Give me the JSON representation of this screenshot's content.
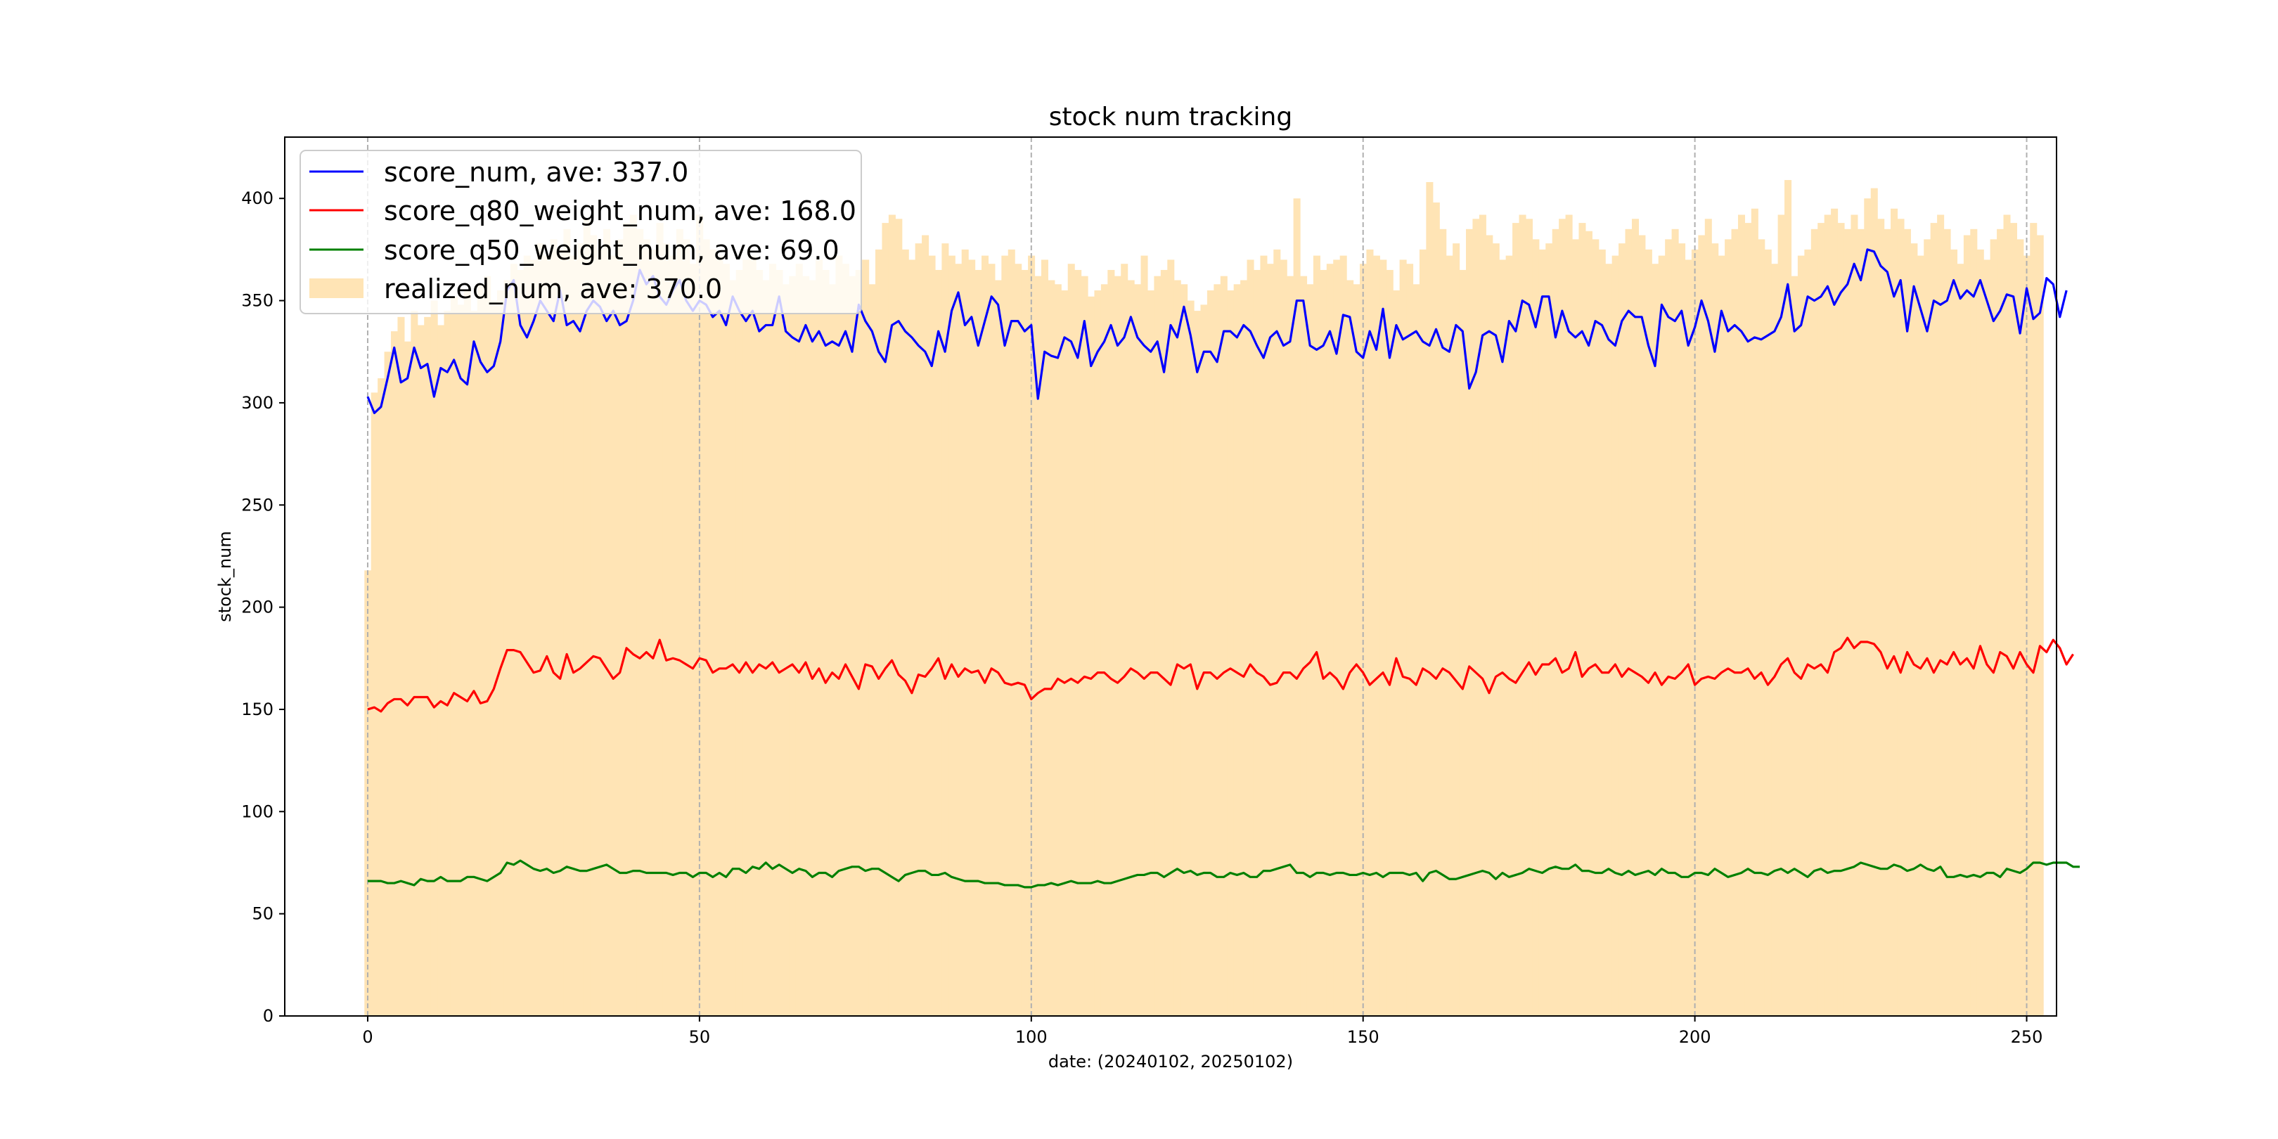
{
  "chart_data": {
    "type": "line+bar",
    "title": "stock num tracking",
    "xlabel": "date: (20240102, 20250102)",
    "ylabel": "stock_num",
    "xlim": [
      -12.5,
      254.5
    ],
    "ylim": [
      0,
      430
    ],
    "xticks": [
      0,
      50,
      100,
      150,
      200,
      250
    ],
    "yticks": [
      0,
      50,
      100,
      150,
      200,
      250,
      300,
      350,
      400
    ],
    "vertical_grid": true,
    "legend_position": "top-left",
    "series": [
      {
        "name": "score_num",
        "legend_label": "score_num, ave: 337.0",
        "kind": "line",
        "color": "#0000ff",
        "values": [
          303,
          295,
          298,
          312,
          327,
          310,
          312,
          327,
          317,
          319,
          303,
          317,
          315,
          321,
          312,
          309,
          330,
          320,
          315,
          318,
          330,
          355,
          360,
          338,
          332,
          340,
          350,
          345,
          340,
          355,
          338,
          340,
          335,
          345,
          350,
          347,
          340,
          345,
          338,
          340,
          350,
          365,
          358,
          362,
          352,
          348,
          355,
          360,
          350,
          345,
          350,
          348,
          342,
          345,
          338,
          352,
          345,
          340,
          345,
          335,
          338,
          338,
          352,
          335,
          332,
          330,
          338,
          330,
          335,
          328,
          330,
          328,
          335,
          325,
          348,
          340,
          335,
          325,
          320,
          338,
          340,
          335,
          332,
          328,
          325,
          318,
          335,
          325,
          345,
          354,
          338,
          342,
          328,
          340,
          352,
          348,
          328,
          340,
          340,
          335,
          338,
          302,
          325,
          323,
          322,
          332,
          330,
          322,
          340,
          318,
          325,
          330,
          338,
          328,
          332,
          342,
          332,
          328,
          325,
          330,
          315,
          338,
          332,
          347,
          333,
          315,
          325,
          325,
          320,
          335,
          335,
          332,
          338,
          335,
          328,
          322,
          332,
          335,
          328,
          330,
          350,
          350,
          328,
          326,
          328,
          335,
          324,
          343,
          342,
          325,
          322,
          335,
          326,
          346,
          322,
          338,
          331,
          333,
          335,
          330,
          328,
          336,
          327,
          325,
          338,
          335,
          307,
          315,
          333,
          335,
          333,
          320,
          340,
          335,
          350,
          348,
          337,
          352,
          352,
          332,
          345,
          335,
          332,
          335,
          328,
          340,
          338,
          331,
          328,
          340,
          345,
          342,
          342,
          328,
          318,
          348,
          342,
          340,
          345,
          328,
          337,
          350,
          340,
          325,
          345,
          335,
          338,
          335,
          330,
          332,
          331,
          333,
          335,
          342,
          358,
          335,
          338,
          352,
          350,
          352,
          357,
          348,
          354,
          358,
          368,
          360,
          375,
          374,
          367,
          364,
          352,
          360,
          335,
          357,
          346,
          335,
          350,
          348,
          350,
          360,
          351,
          355,
          352,
          360,
          350,
          340,
          345,
          353,
          352,
          334,
          356,
          341,
          344,
          361,
          358,
          342,
          355
        ]
      },
      {
        "name": "score_q80_weight_num",
        "legend_label": "score_q80_weight_num, ave: 168.0",
        "kind": "line",
        "color": "#ff0000",
        "values": [
          150,
          151,
          149,
          153,
          155,
          155,
          152,
          156,
          156,
          156,
          151,
          154,
          152,
          158,
          156,
          154,
          159,
          153,
          154,
          160,
          170,
          179,
          179,
          178,
          173,
          168,
          169,
          176,
          168,
          165,
          177,
          168,
          170,
          173,
          176,
          175,
          170,
          165,
          168,
          180,
          177,
          175,
          178,
          175,
          184,
          174,
          175,
          174,
          172,
          170,
          175,
          174,
          168,
          170,
          170,
          172,
          168,
          173,
          168,
          172,
          170,
          173,
          168,
          170,
          172,
          168,
          173,
          165,
          170,
          163,
          168,
          165,
          172,
          166,
          160,
          172,
          171,
          165,
          170,
          174,
          167,
          164,
          158,
          167,
          166,
          170,
          175,
          165,
          172,
          166,
          170,
          168,
          169,
          163,
          170,
          168,
          163,
          162,
          163,
          162,
          155,
          158,
          160,
          160,
          165,
          163,
          165,
          163,
          166,
          165,
          168,
          168,
          165,
          163,
          166,
          170,
          168,
          165,
          168,
          168,
          165,
          162,
          172,
          170,
          172,
          160,
          168,
          168,
          165,
          168,
          170,
          168,
          166,
          172,
          168,
          166,
          162,
          163,
          168,
          168,
          165,
          170,
          173,
          178,
          165,
          168,
          165,
          160,
          168,
          172,
          168,
          162,
          165,
          168,
          162,
          175,
          166,
          165,
          162,
          170,
          168,
          165,
          170,
          168,
          164,
          160,
          171,
          168,
          165,
          158,
          166,
          168,
          165,
          163,
          168,
          173,
          167,
          172,
          172,
          175,
          168,
          170,
          178,
          166,
          170,
          172,
          168,
          168,
          172,
          166,
          170,
          168,
          166,
          163,
          168,
          162,
          166,
          165,
          168,
          172,
          162,
          165,
          166,
          165,
          168,
          170,
          168,
          168,
          170,
          165,
          168,
          162,
          166,
          172,
          175,
          168,
          165,
          172,
          170,
          172,
          168,
          178,
          180,
          185,
          180,
          183,
          183,
          182,
          178,
          170,
          176,
          168,
          178,
          172,
          170,
          175,
          168,
          174,
          172,
          178,
          172,
          175,
          170,
          181,
          172,
          168,
          178,
          176,
          170,
          178,
          172,
          168,
          181,
          178,
          184,
          180,
          172,
          177
        ]
      },
      {
        "name": "score_q50_weight_num",
        "legend_label": "score_q50_weight_num, ave: 69.0",
        "kind": "line",
        "color": "#008000",
        "values": [
          66,
          66,
          66,
          65,
          65,
          66,
          65,
          64,
          67,
          66,
          66,
          68,
          66,
          66,
          66,
          68,
          68,
          67,
          66,
          68,
          70,
          75,
          74,
          76,
          74,
          72,
          71,
          72,
          70,
          71,
          73,
          72,
          71,
          71,
          72,
          73,
          74,
          72,
          70,
          70,
          71,
          71,
          70,
          70,
          70,
          70,
          69,
          70,
          70,
          68,
          70,
          70,
          68,
          70,
          68,
          72,
          72,
          70,
          73,
          72,
          75,
          72,
          74,
          72,
          70,
          72,
          71,
          68,
          70,
          70,
          68,
          71,
          72,
          73,
          73,
          71,
          72,
          72,
          70,
          68,
          66,
          69,
          70,
          71,
          71,
          69,
          69,
          70,
          68,
          67,
          66,
          66,
          66,
          65,
          65,
          65,
          64,
          64,
          64,
          63,
          63,
          64,
          64,
          65,
          64,
          65,
          66,
          65,
          65,
          65,
          66,
          65,
          65,
          66,
          67,
          68,
          69,
          69,
          70,
          70,
          68,
          70,
          72,
          70,
          71,
          69,
          70,
          70,
          68,
          68,
          70,
          69,
          70,
          68,
          68,
          71,
          71,
          72,
          73,
          74,
          70,
          70,
          68,
          70,
          70,
          69,
          70,
          70,
          69,
          69,
          70,
          69,
          70,
          68,
          70,
          70,
          70,
          69,
          70,
          66,
          70,
          71,
          69,
          67,
          67,
          68,
          69,
          70,
          71,
          70,
          67,
          70,
          68,
          69,
          70,
          72,
          71,
          70,
          72,
          73,
          72,
          72,
          74,
          71,
          71,
          70,
          70,
          72,
          70,
          69,
          71,
          69,
          70,
          71,
          69,
          72,
          70,
          70,
          68,
          68,
          70,
          70,
          69,
          72,
          70,
          68,
          69,
          70,
          72,
          70,
          70,
          69,
          71,
          72,
          70,
          72,
          70,
          68,
          71,
          72,
          70,
          71,
          71,
          72,
          73,
          75,
          74,
          73,
          72,
          72,
          74,
          73,
          71,
          72,
          74,
          72,
          71,
          73,
          68,
          68,
          69,
          68,
          69,
          68,
          70,
          70,
          68,
          72,
          71,
          70,
          72,
          75,
          75,
          74,
          75,
          75,
          75,
          73,
          73
        ]
      },
      {
        "name": "realized_num",
        "legend_label": "realized_num, ave: 370.0",
        "kind": "bar",
        "color": "#ffe4b5",
        "values": [
          218,
          305,
          312,
          325,
          335,
          342,
          330,
          345,
          338,
          342,
          350,
          338,
          345,
          352,
          348,
          355,
          345,
          358,
          362,
          350,
          355,
          360,
          368,
          365,
          372,
          370,
          378,
          372,
          380,
          375,
          385,
          372,
          378,
          390,
          382,
          375,
          385,
          372,
          380,
          388,
          392,
          385,
          380,
          375,
          388,
          378,
          372,
          385,
          380,
          368,
          392,
          380,
          375,
          372,
          368,
          360,
          365,
          370,
          372,
          365,
          360,
          368,
          365,
          358,
          362,
          368,
          362,
          360,
          370,
          365,
          358,
          372,
          368,
          362,
          365,
          370,
          358,
          375,
          388,
          392,
          390,
          375,
          370,
          378,
          382,
          372,
          365,
          378,
          372,
          368,
          375,
          370,
          365,
          372,
          368,
          360,
          372,
          375,
          368,
          365,
          372,
          362,
          370,
          360,
          358,
          355,
          368,
          365,
          362,
          352,
          355,
          358,
          365,
          362,
          368,
          360,
          358,
          372,
          355,
          362,
          365,
          370,
          360,
          358,
          350,
          345,
          348,
          355,
          358,
          362,
          355,
          358,
          360,
          370,
          365,
          372,
          368,
          375,
          370,
          362,
          400,
          362,
          358,
          372,
          365,
          368,
          370,
          372,
          360,
          358,
          368,
          375,
          372,
          370,
          365,
          355,
          370,
          368,
          358,
          375,
          408,
          398,
          385,
          372,
          378,
          365,
          385,
          390,
          392,
          382,
          378,
          370,
          372,
          388,
          392,
          390,
          380,
          375,
          378,
          385,
          390,
          392,
          380,
          388,
          384,
          380,
          375,
          368,
          372,
          378,
          385,
          390,
          382,
          375,
          368,
          372,
          380,
          385,
          378,
          370,
          375,
          382,
          390,
          378,
          372,
          380,
          385,
          392,
          388,
          395,
          380,
          375,
          368,
          392,
          409,
          362,
          372,
          375,
          385,
          388,
          392,
          395,
          388,
          385,
          392,
          385,
          400,
          405,
          390,
          385,
          395,
          390,
          385,
          378,
          372,
          380,
          388,
          392,
          385,
          375,
          368,
          382,
          385,
          375,
          370,
          380,
          385,
          392,
          388,
          380,
          372,
          388,
          382
        ]
      }
    ]
  }
}
